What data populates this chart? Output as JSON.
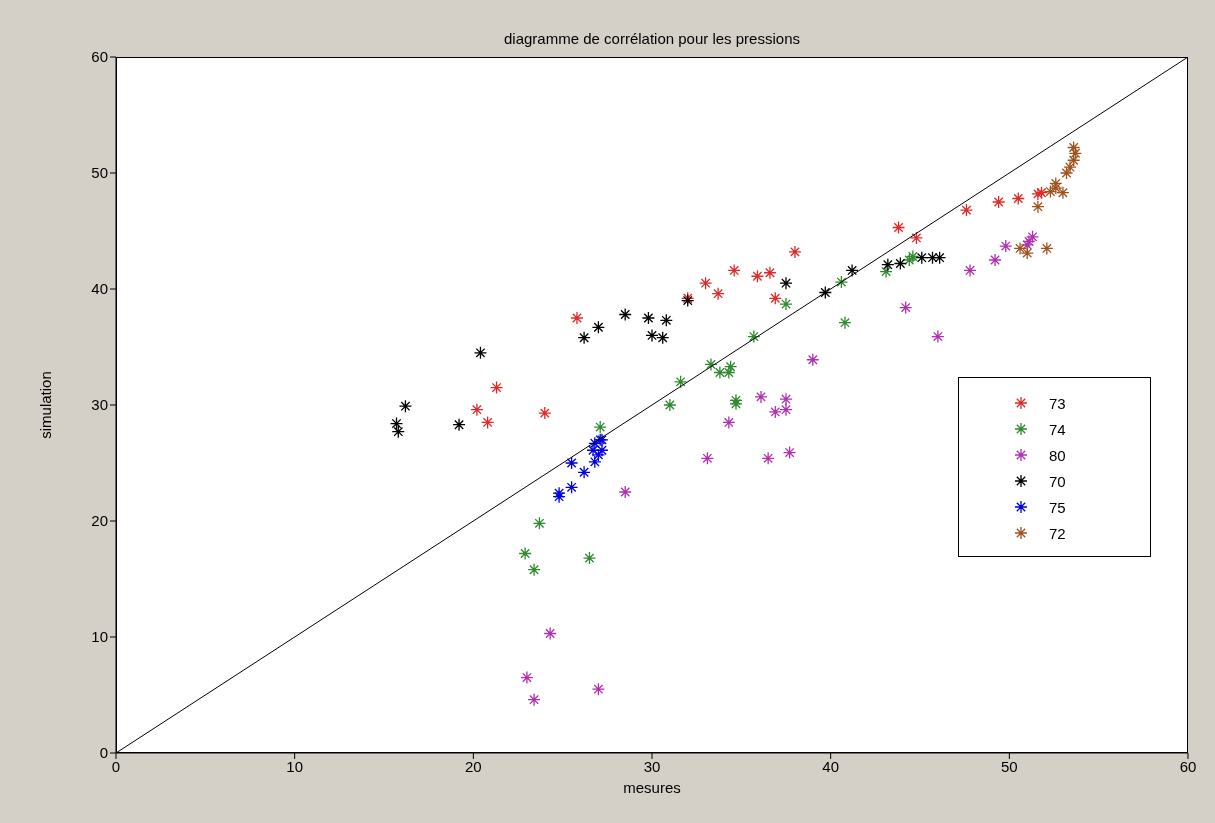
{
  "chart_data": {
    "type": "scatter",
    "title": "diagramme de corrélation pour les pressions",
    "xlabel": "mesures",
    "ylabel": "simulation",
    "xlim": [
      0,
      60
    ],
    "ylim": [
      0,
      60
    ],
    "xticks": [
      0,
      10,
      20,
      30,
      40,
      50,
      60
    ],
    "yticks": [
      0,
      10,
      20,
      30,
      40,
      50,
      60
    ],
    "legend": "right",
    "marker": "cross",
    "series": [
      {
        "name": "73",
        "color": "#e02a2a",
        "x": [
          25.8,
          21.3,
          20.2,
          20.8,
          24.0,
          32.0,
          33.0,
          34.6,
          33.7,
          35.9,
          36.6,
          36.9,
          38.0,
          43.8,
          44.8,
          47.6,
          49.4,
          50.5,
          51.6,
          51.8
        ],
        "values": [
          37.5,
          31.5,
          29.6,
          28.5,
          29.3,
          39.2,
          40.5,
          41.6,
          39.6,
          41.1,
          41.4,
          39.2,
          43.2,
          45.3,
          44.4,
          46.8,
          47.5,
          47.8,
          48.2,
          48.3
        ]
      },
      {
        "name": "74",
        "color": "#2e8b2e",
        "x": [
          27.1,
          31.0,
          31.6,
          33.3,
          33.8,
          34.4,
          34.3,
          34.7,
          34.7,
          35.7,
          37.5,
          23.7,
          22.9,
          23.4,
          26.5,
          40.8,
          40.6,
          43.1,
          44.4,
          44.6
        ],
        "values": [
          28.1,
          30.0,
          32.0,
          33.5,
          32.8,
          33.3,
          32.8,
          30.4,
          30.1,
          35.9,
          38.7,
          19.8,
          17.2,
          15.8,
          16.8,
          37.1,
          40.6,
          41.5,
          42.5,
          42.8
        ]
      },
      {
        "name": "80",
        "color": "#b030b0",
        "x": [
          28.5,
          24.3,
          23.0,
          23.4,
          27.0,
          33.1,
          36.5,
          37.7,
          34.3,
          36.1,
          37.5,
          36.9,
          37.5,
          39.0,
          44.2,
          46.0,
          47.8,
          49.2,
          49.8,
          51.1,
          51.3,
          51.0
        ],
        "values": [
          22.5,
          10.3,
          6.5,
          4.6,
          5.5,
          25.4,
          25.4,
          25.9,
          28.5,
          30.7,
          30.5,
          29.4,
          29.6,
          33.9,
          38.4,
          35.9,
          41.6,
          42.5,
          43.7,
          44.1,
          44.5,
          43.8
        ]
      },
      {
        "name": "70",
        "color": "#000000",
        "x": [
          16.2,
          15.7,
          15.8,
          19.2,
          20.4,
          26.2,
          27.0,
          28.5,
          29.8,
          30.8,
          30.0,
          30.6,
          32.0,
          37.5,
          39.7,
          41.2,
          43.2,
          43.9,
          45.1,
          45.7,
          46.1
        ],
        "values": [
          29.9,
          28.4,
          27.7,
          28.3,
          34.5,
          35.8,
          36.7,
          37.8,
          37.5,
          37.3,
          36.0,
          35.8,
          39.0,
          40.5,
          39.7,
          41.6,
          42.1,
          42.2,
          42.7,
          42.7,
          42.7
        ]
      },
      {
        "name": "75",
        "color": "#0000e0",
        "x": [
          25.5,
          26.2,
          25.5,
          24.8,
          24.8,
          26.8,
          27.0,
          26.8,
          27.2,
          26.7,
          27.1,
          27.2
        ],
        "values": [
          25.0,
          24.2,
          22.9,
          22.4,
          22.1,
          26.7,
          25.7,
          25.1,
          26.1,
          26.1,
          27.0,
          27.0
        ]
      },
      {
        "name": "72",
        "color": "#a0521e",
        "x": [
          53.6,
          53.7,
          53.6,
          53.4,
          53.2,
          52.6,
          52.6,
          53.0,
          52.3,
          51.6,
          52.1,
          51.0,
          50.6
        ],
        "values": [
          52.2,
          51.7,
          51.1,
          50.5,
          50.0,
          49.1,
          48.7,
          48.3,
          48.4,
          47.1,
          43.5,
          43.1,
          43.5
        ]
      },
      {
        "type": "line",
        "marker": "none",
        "color": "#000000",
        "x": [
          0,
          60
        ],
        "values": [
          0,
          60
        ]
      }
    ]
  }
}
